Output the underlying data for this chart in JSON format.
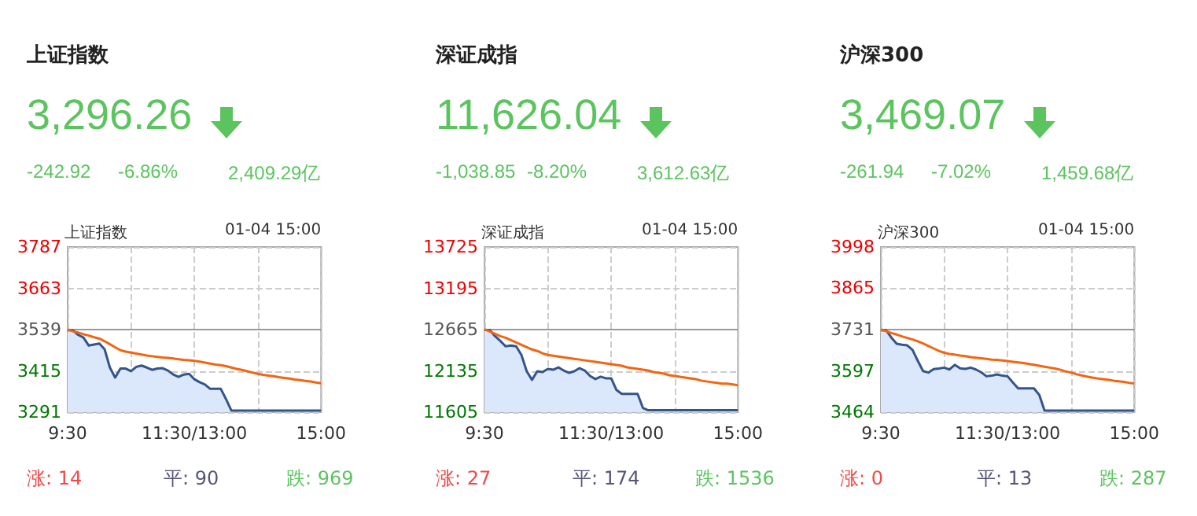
{
  "chart_data": [
    {
      "type": "line",
      "title": "上证指数",
      "subtitle": "3,296.26",
      "annotations": [
        "-242.92",
        "-6.86%",
        "2,409.29亿",
        "上证指数",
        "01-04 15:00",
        "涨: 14",
        "平: 90",
        "跌: 969"
      ],
      "categories": [
        "9:30",
        null,
        null,
        null,
        null,
        null,
        null,
        null,
        null,
        null,
        null,
        null,
        null,
        null,
        null,
        null,
        null,
        null,
        null,
        null,
        null,
        null,
        null,
        null,
        "11:30/13:00",
        null,
        null,
        null,
        null,
        null,
        null,
        null,
        null,
        null,
        null,
        null,
        null,
        null,
        null,
        null,
        null,
        null,
        null,
        null,
        null,
        null,
        null,
        null,
        "15:00"
      ],
      "ylim": [
        3291,
        3787
      ],
      "yticks": [
        3291,
        3415,
        3539,
        3663,
        3787
      ],
      "grid": true,
      "ref_lines": [
        {
          "axis": "y",
          "value": 3539,
          "color": "#999999"
        }
      ],
      "series": [
        {
          "type": "area",
          "color": "#34558b",
          "values": [
            3537,
            3537,
            3523,
            3515,
            3491,
            3494,
            3497,
            3480,
            3425,
            3395,
            3422,
            3422,
            3414,
            3427,
            3431,
            3425,
            3418,
            3422,
            3423,
            3416,
            3404,
            3397,
            3404,
            3406,
            3390,
            3381,
            3374,
            3361,
            3361,
            3361,
            3330,
            3296,
            3296,
            3296,
            3296,
            3296,
            3296,
            3296,
            3296,
            3296,
            3296,
            3296,
            3296,
            3296,
            3296,
            3296,
            3296,
            3296,
            3296
          ]
        },
        {
          "type": "line",
          "color": "#f26511",
          "values": [
            3539,
            3534,
            3530,
            3525,
            3521,
            3516,
            3512,
            3504,
            3495,
            3486,
            3477,
            3473,
            3470,
            3467,
            3464,
            3461,
            3459,
            3457,
            3455,
            3454,
            3452,
            3450,
            3448,
            3447,
            3445,
            3443,
            3440,
            3437,
            3434,
            3432,
            3429,
            3425,
            3421,
            3418,
            3414,
            3410,
            3406,
            3403,
            3401,
            3399,
            3396,
            3394,
            3392,
            3389,
            3387,
            3385,
            3383,
            3380,
            3378
          ]
        }
      ]
    },
    {
      "type": "line",
      "title": "深证成指",
      "subtitle": "11,626.04",
      "annotations": [
        "-1,038.85",
        "-8.20%",
        "3,612.63亿",
        "深证成指",
        "01-04 15:00",
        "涨: 27",
        "平: 174",
        "跌: 1536"
      ],
      "categories": [
        "9:30",
        null,
        null,
        null,
        null,
        null,
        null,
        null,
        null,
        null,
        null,
        null,
        null,
        null,
        null,
        null,
        null,
        null,
        null,
        null,
        null,
        null,
        null,
        null,
        "11:30/13:00",
        null,
        null,
        null,
        null,
        null,
        null,
        null,
        null,
        null,
        null,
        null,
        null,
        null,
        null,
        null,
        null,
        null,
        null,
        null,
        null,
        null,
        null,
        null,
        "15:00"
      ],
      "ylim": [
        11605,
        13725
      ],
      "yticks": [
        11605,
        12135,
        12665,
        13195,
        13725
      ],
      "grid": true,
      "ref_lines": [
        {
          "axis": "y",
          "value": 12665,
          "color": "#999999"
        }
      ],
      "series": [
        {
          "type": "area",
          "color": "#34558b",
          "values": [
            12660,
            12660,
            12580,
            12520,
            12450,
            12460,
            12450,
            12340,
            12130,
            12020,
            12130,
            12120,
            12160,
            12150,
            12180,
            12140,
            12110,
            12130,
            12170,
            12140,
            12070,
            12030,
            12060,
            12040,
            12040,
            11890,
            11840,
            11840,
            11840,
            11840,
            11660,
            11630,
            11630,
            11630,
            11630,
            11630,
            11630,
            11630,
            11630,
            11630,
            11630,
            11630,
            11630,
            11630,
            11630,
            11630,
            11630,
            11630,
            11630
          ]
        },
        {
          "type": "line",
          "color": "#f26511",
          "values": [
            12670,
            12640,
            12610,
            12580,
            12560,
            12530,
            12500,
            12470,
            12440,
            12410,
            12390,
            12360,
            12340,
            12330,
            12320,
            12310,
            12300,
            12290,
            12280,
            12270,
            12260,
            12250,
            12240,
            12230,
            12220,
            12210,
            12200,
            12180,
            12170,
            12160,
            12150,
            12140,
            12120,
            12110,
            12100,
            12080,
            12070,
            12060,
            12050,
            12040,
            12030,
            12010,
            12000,
            11990,
            11980,
            11970,
            11970,
            11960,
            11950
          ]
        }
      ]
    },
    {
      "type": "line",
      "title": "沪深300",
      "subtitle": "3,469.07",
      "annotations": [
        "-261.94",
        "-7.02%",
        "1,459.68亿",
        "沪深300",
        "01-04 15:00",
        "涨: 0",
        "平: 13",
        "跌: 287"
      ],
      "categories": [
        "9:30",
        null,
        null,
        null,
        null,
        null,
        null,
        null,
        null,
        null,
        null,
        null,
        null,
        null,
        null,
        null,
        null,
        null,
        null,
        null,
        null,
        null,
        null,
        null,
        "11:30/13:00",
        null,
        null,
        null,
        null,
        null,
        null,
        null,
        null,
        null,
        null,
        null,
        null,
        null,
        null,
        null,
        null,
        null,
        null,
        null,
        null,
        null,
        null,
        null,
        "15:00"
      ],
      "ylim": [
        3464,
        3998
      ],
      "yticks": [
        3464,
        3597,
        3731,
        3865,
        3998
      ],
      "grid": true,
      "ref_lines": [
        {
          "axis": "y",
          "value": 3731,
          "color": "#999999"
        }
      ],
      "series": [
        {
          "type": "area",
          "color": "#34558b",
          "values": [
            3729,
            3729,
            3705,
            3685,
            3682,
            3680,
            3665,
            3630,
            3597,
            3592,
            3603,
            3605,
            3608,
            3602,
            3617,
            3606,
            3604,
            3608,
            3602,
            3593,
            3580,
            3582,
            3586,
            3582,
            3580,
            3560,
            3541,
            3541,
            3541,
            3541,
            3520,
            3469,
            3469,
            3469,
            3469,
            3469,
            3469,
            3469,
            3469,
            3469,
            3469,
            3469,
            3469,
            3469,
            3469,
            3469,
            3469,
            3469,
            3469
          ]
        },
        {
          "type": "line",
          "color": "#f26511",
          "values": [
            3731,
            3726,
            3720,
            3715,
            3709,
            3704,
            3699,
            3693,
            3686,
            3678,
            3670,
            3662,
            3656,
            3652,
            3650,
            3647,
            3645,
            3642,
            3640,
            3638,
            3636,
            3634,
            3633,
            3631,
            3629,
            3627,
            3625,
            3623,
            3620,
            3617,
            3614,
            3611,
            3608,
            3605,
            3601,
            3596,
            3592,
            3587,
            3583,
            3579,
            3576,
            3573,
            3571,
            3569,
            3566,
            3564,
            3562,
            3559,
            3557
          ]
        }
      ]
    }
  ]
}
